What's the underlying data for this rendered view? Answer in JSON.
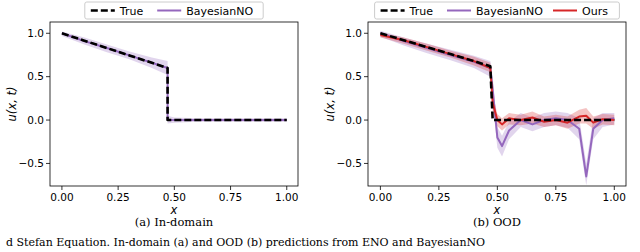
{
  "chart_data": [
    {
      "type": "line",
      "title": "(a) In-domain",
      "x_label": "x",
      "y_label": "u(x, t)",
      "x": [
        0,
        0.1,
        0.2,
        0.3,
        0.4,
        0.47,
        0.47,
        0.5,
        0.6,
        0.7,
        0.8,
        0.9,
        1.0
      ],
      "xlim": [
        -0.053,
        1.05
      ],
      "xticks": [
        {
          "value": 0,
          "label": "0.00"
        },
        {
          "value": 0.25,
          "label": "0.25"
        },
        {
          "value": 0.5,
          "label": "0.50"
        },
        {
          "value": 0.75,
          "label": "0.75"
        },
        {
          "value": 1.0,
          "label": "1.00"
        }
      ],
      "ylim": [
        -0.76,
        1.13
      ],
      "yticks": [
        {
          "value": -0.5,
          "label": "−0.5"
        },
        {
          "value": 0,
          "label": "0.0"
        },
        {
          "value": 0.5,
          "label": "0.5"
        },
        {
          "value": 1.0,
          "label": "1.0"
        }
      ],
      "grid": false,
      "legend": "top",
      "series": [
        {
          "name": "True",
          "color": "#000000",
          "line_style": "dashed",
          "values": [
            1.0,
            0.915,
            0.83,
            0.745,
            0.66,
            0.6,
            0.0,
            0.0,
            0.0,
            0.0,
            0.0,
            0.0,
            0.0
          ]
        },
        {
          "name": "BayesianNO",
          "color": "#9467bd",
          "line_style": "solid",
          "values": [
            1.0,
            0.91,
            0.83,
            0.745,
            0.66,
            0.6,
            0.0,
            0.0,
            0.0,
            0.0,
            0.0,
            0.0,
            0.0
          ],
          "lower": [
            0.97,
            0.87,
            0.78,
            0.7,
            0.6,
            0.52,
            -0.04,
            -0.03,
            -0.02,
            -0.02,
            -0.02,
            -0.02,
            -0.02
          ],
          "upper": [
            1.02,
            0.95,
            0.87,
            0.79,
            0.72,
            0.68,
            0.05,
            0.03,
            0.02,
            0.02,
            0.02,
            0.02,
            0.02
          ]
        }
      ]
    },
    {
      "type": "line",
      "title": "(b) OOD",
      "x_label": "x",
      "y_label": "u(x, t)",
      "x": [
        0,
        0.1,
        0.2,
        0.3,
        0.4,
        0.47,
        0.48,
        0.5,
        0.52,
        0.55,
        0.6,
        0.65,
        0.7,
        0.75,
        0.8,
        0.85,
        0.88,
        0.91,
        0.95,
        1.0
      ],
      "xlim": [
        -0.053,
        1.05
      ],
      "xticks": [
        {
          "value": 0,
          "label": "0.00"
        },
        {
          "value": 0.25,
          "label": "0.25"
        },
        {
          "value": 0.5,
          "label": "0.50"
        },
        {
          "value": 0.75,
          "label": "0.75"
        },
        {
          "value": 1.0,
          "label": "1.00"
        }
      ],
      "ylim": [
        -0.76,
        1.13
      ],
      "yticks": [
        {
          "value": -0.5,
          "label": "−0.5"
        },
        {
          "value": 0,
          "label": "0.0"
        },
        {
          "value": 0.5,
          "label": "0.5"
        },
        {
          "value": 1.0,
          "label": "1.0"
        }
      ],
      "grid": false,
      "legend": "top",
      "series": [
        {
          "name": "True",
          "color": "#000000",
          "line_style": "dashed",
          "values": [
            1.0,
            0.92,
            0.84,
            0.76,
            0.68,
            0.62,
            0.0,
            0.0,
            0.0,
            0.0,
            0.0,
            0.0,
            0.0,
            0.0,
            0.0,
            0.0,
            0.0,
            0.0,
            0.0,
            0.0
          ]
        },
        {
          "name": "BayesianNO",
          "color": "#9467bd",
          "line_style": "solid",
          "values": [
            1.0,
            0.91,
            0.83,
            0.75,
            0.67,
            0.6,
            0.35,
            -0.2,
            -0.3,
            -0.12,
            0.0,
            -0.05,
            0.0,
            0.02,
            0.0,
            -0.1,
            -0.65,
            -0.1,
            0.0,
            0.02
          ],
          "lower": [
            0.96,
            0.86,
            0.77,
            0.69,
            0.6,
            0.5,
            0.2,
            -0.32,
            -0.42,
            -0.22,
            -0.08,
            -0.13,
            -0.08,
            -0.06,
            -0.09,
            -0.22,
            -0.75,
            -0.22,
            -0.08,
            -0.05
          ],
          "upper": [
            1.03,
            0.95,
            0.88,
            0.81,
            0.74,
            0.68,
            0.5,
            -0.08,
            -0.18,
            -0.02,
            0.08,
            0.03,
            0.08,
            0.1,
            0.08,
            0.02,
            -0.5,
            0.02,
            0.08,
            0.08
          ]
        },
        {
          "name": "Ours",
          "color": "#d62728",
          "line_style": "solid",
          "values": [
            0.98,
            0.92,
            0.84,
            0.76,
            0.68,
            0.6,
            0.2,
            0.0,
            -0.05,
            0.02,
            0.0,
            0.03,
            -0.02,
            0.0,
            -0.03,
            0.04,
            0.05,
            -0.03,
            0.01,
            0.0
          ],
          "lower": [
            0.95,
            0.88,
            0.8,
            0.72,
            0.63,
            0.55,
            0.1,
            -0.07,
            -0.12,
            -0.05,
            -0.06,
            -0.04,
            -0.08,
            -0.06,
            -0.1,
            -0.04,
            -0.04,
            -0.1,
            -0.05,
            -0.06
          ],
          "upper": [
            1.01,
            0.95,
            0.88,
            0.8,
            0.73,
            0.66,
            0.3,
            0.07,
            0.02,
            0.08,
            0.06,
            0.1,
            0.04,
            0.06,
            0.04,
            0.12,
            0.14,
            0.04,
            0.07,
            0.06
          ]
        }
      ]
    }
  ],
  "caption": "d Stefan Equation. In-domain (a) and OOD (b) predictions from ENO and BayesianNO"
}
